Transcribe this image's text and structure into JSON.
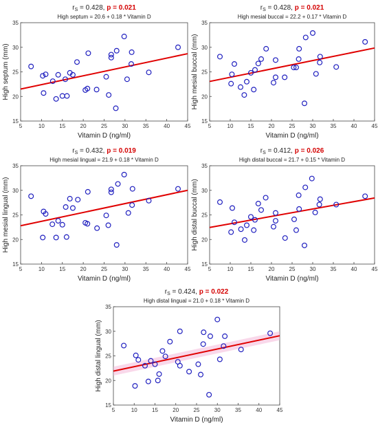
{
  "colors": {
    "points": "#1f1fbf",
    "regression": "#e00000",
    "band": "#f4b8d8",
    "pvalue": "#d40000"
  },
  "chart_data": [
    {
      "type": "scatter",
      "rs_label": "r",
      "rs_sub": "S",
      "rs_text": " = 0.428, ",
      "p_text": "p = 0.021",
      "equation": "High septum = 20.6 + 0.18 * Vitamin D",
      "xlabel": "Vitamin D (ng/ml)",
      "ylabel": "High septum (mm)",
      "xlim": [
        5,
        45
      ],
      "ylim": [
        15,
        35
      ],
      "xticks": [
        "5",
        "10",
        "15",
        "20",
        "25",
        "30",
        "35",
        "40",
        "45"
      ],
      "yticks": [
        "15",
        "20",
        "25",
        "30",
        "35"
      ],
      "intercept": 20.6,
      "slope": 0.18,
      "band": false,
      "points": [
        [
          7.5,
          26.1
        ],
        [
          10.3,
          24.2
        ],
        [
          10.5,
          20.7
        ],
        [
          11,
          24.5
        ],
        [
          12.7,
          23.1
        ],
        [
          13.5,
          19.5
        ],
        [
          14,
          24.4
        ],
        [
          15,
          20.1
        ],
        [
          15.7,
          23.5
        ],
        [
          16.1,
          20.1
        ],
        [
          16.8,
          24.8
        ],
        [
          17.5,
          24.4
        ],
        [
          18.5,
          27.0
        ],
        [
          20.5,
          21.3
        ],
        [
          21,
          21.6
        ],
        [
          21.2,
          28.8
        ],
        [
          23.2,
          21.4
        ],
        [
          25.5,
          24.0
        ],
        [
          26.1,
          20.3
        ],
        [
          26.7,
          27.9
        ],
        [
          26.7,
          28.5
        ],
        [
          27.8,
          17.6
        ],
        [
          28,
          29.3
        ],
        [
          29.8,
          32.2
        ],
        [
          30.5,
          23.5
        ],
        [
          31.5,
          26.6
        ],
        [
          31.6,
          29.0
        ],
        [
          35.7,
          24.9
        ],
        [
          42.7,
          30.0
        ]
      ]
    },
    {
      "type": "scatter",
      "rs_label": "r",
      "rs_sub": "S",
      "rs_text": " = 0.428, ",
      "p_text": "p = 0.021",
      "equation": "High mesial buccal = 22.2 + 0.17 * Vitamin D",
      "xlabel": "Vitamin D (ng/ml)",
      "ylabel": "High mesial buccal (mm)",
      "xlim": [
        5,
        45
      ],
      "ylim": [
        15,
        35
      ],
      "xticks": [
        "5",
        "10",
        "15",
        "20",
        "25",
        "30",
        "35",
        "40",
        "45"
      ],
      "yticks": [
        "15",
        "20",
        "25",
        "30",
        "35"
      ],
      "intercept": 22.2,
      "slope": 0.17,
      "band": false,
      "points": [
        [
          7.5,
          28.1
        ],
        [
          10.2,
          22.6
        ],
        [
          10.4,
          24.5
        ],
        [
          11,
          26.6
        ],
        [
          12.5,
          21.9
        ],
        [
          13.4,
          20.3
        ],
        [
          14,
          23.0
        ],
        [
          15,
          24.8
        ],
        [
          15.7,
          21.4
        ],
        [
          16,
          25.4
        ],
        [
          16.8,
          26.7
        ],
        [
          17.5,
          27.6
        ],
        [
          18.7,
          29.7
        ],
        [
          20.5,
          22.8
        ],
        [
          21,
          23.9
        ],
        [
          21,
          27.4
        ],
        [
          23.2,
          23.9
        ],
        [
          25.4,
          25.9
        ],
        [
          26,
          25.9
        ],
        [
          26.6,
          27.6
        ],
        [
          26.7,
          29.7
        ],
        [
          28,
          18.6
        ],
        [
          28.3,
          32.0
        ],
        [
          30,
          32.9
        ],
        [
          30.8,
          24.6
        ],
        [
          31.7,
          26.9
        ],
        [
          31.8,
          28.1
        ],
        [
          35.7,
          26.0
        ],
        [
          42.7,
          31.1
        ]
      ]
    },
    {
      "type": "scatter",
      "rs_label": "r",
      "rs_sub": "S",
      "rs_text": " = 0.432, ",
      "p_text": "p = 0.019",
      "equation": "High mesial lingual = 21.9 + 0.18 * Vitamin D",
      "xlabel": "Vitamin D (ng/ml)",
      "ylabel": "High mesial lingual (mm)",
      "xlim": [
        5,
        45
      ],
      "ylim": [
        15,
        35
      ],
      "xticks": [
        "5",
        "10",
        "15",
        "20",
        "25",
        "30",
        "35",
        "40",
        "45"
      ],
      "yticks": [
        "15",
        "20",
        "25",
        "30",
        "35"
      ],
      "intercept": 21.9,
      "slope": 0.18,
      "band": false,
      "points": [
        [
          7.5,
          28.8
        ],
        [
          10.3,
          20.4
        ],
        [
          10.5,
          25.7
        ],
        [
          11,
          25.2
        ],
        [
          12.6,
          23.1
        ],
        [
          13.5,
          20.4
        ],
        [
          14,
          23.8
        ],
        [
          15,
          23.0
        ],
        [
          15.8,
          26.6
        ],
        [
          16,
          20.5
        ],
        [
          16.8,
          28.3
        ],
        [
          17.5,
          26.4
        ],
        [
          18.7,
          28.1
        ],
        [
          20.5,
          23.4
        ],
        [
          21,
          23.2
        ],
        [
          21.1,
          29.7
        ],
        [
          23.3,
          22.3
        ],
        [
          25.5,
          24.9
        ],
        [
          26,
          22.9
        ],
        [
          26.7,
          29.6
        ],
        [
          26.7,
          30.2
        ],
        [
          28,
          18.9
        ],
        [
          28.3,
          31.3
        ],
        [
          29.8,
          33.2
        ],
        [
          30.8,
          25.4
        ],
        [
          31.7,
          27.0
        ],
        [
          31.8,
          30.3
        ],
        [
          35.7,
          27.9
        ],
        [
          42.7,
          30.3
        ]
      ]
    },
    {
      "type": "scatter",
      "rs_label": "r",
      "rs_sub": "S",
      "rs_text": " = 0.412, ",
      "p_text": "p = 0.026",
      "equation": "High distal buccal = 21.7 + 0.15 * Vitamin D",
      "xlabel": "Vitamin D (ng/ml)",
      "ylabel": "High distal buccal (mm)",
      "xlim": [
        5,
        45
      ],
      "ylim": [
        15,
        35
      ],
      "xticks": [
        "5",
        "10",
        "15",
        "20",
        "25",
        "30",
        "35",
        "40",
        "45"
      ],
      "yticks": [
        "15",
        "20",
        "25",
        "30",
        "35"
      ],
      "intercept": 21.7,
      "slope": 0.15,
      "band": false,
      "points": [
        [
          7.5,
          27.6
        ],
        [
          10.2,
          21.5
        ],
        [
          10.5,
          26.4
        ],
        [
          11,
          23.5
        ],
        [
          12.6,
          22.1
        ],
        [
          13.5,
          19.9
        ],
        [
          14,
          22.9
        ],
        [
          15,
          24.6
        ],
        [
          15.7,
          21.9
        ],
        [
          16,
          24.0
        ],
        [
          16.8,
          27.3
        ],
        [
          17.5,
          26.0
        ],
        [
          18.6,
          28.5
        ],
        [
          20.5,
          22.6
        ],
        [
          21,
          25.4
        ],
        [
          21,
          23.8
        ],
        [
          23.3,
          20.3
        ],
        [
          25.5,
          24.1
        ],
        [
          26,
          21.9
        ],
        [
          26.6,
          29.0
        ],
        [
          26.7,
          26.2
        ],
        [
          28,
          18.8
        ],
        [
          28.2,
          30.6
        ],
        [
          29.8,
          32.4
        ],
        [
          30.6,
          25.5
        ],
        [
          31.6,
          27.1
        ],
        [
          31.8,
          28.2
        ],
        [
          35.7,
          27.1
        ],
        [
          42.7,
          28.8
        ]
      ]
    },
    {
      "type": "scatter",
      "rs_label": "r",
      "rs_sub": "S",
      "rs_text": " = 0.424, ",
      "p_text": "p = 0.022",
      "equation": "High distal lingual = 21.0 + 0.18 * Vitamin D",
      "xlabel": "Vitamin D (ng/ml)",
      "ylabel": "High distal lingual (mm)",
      "xlim": [
        5,
        45
      ],
      "ylim": [
        15,
        35
      ],
      "xticks": [
        "5",
        "10",
        "15",
        "20",
        "25",
        "30",
        "35",
        "40",
        "45"
      ],
      "yticks": [
        "15",
        "20",
        "25",
        "30",
        "35"
      ],
      "intercept": 21.0,
      "slope": 0.18,
      "band": true,
      "points": [
        [
          7.5,
          27.1
        ],
        [
          10.2,
          18.9
        ],
        [
          10.4,
          25.1
        ],
        [
          11,
          24.2
        ],
        [
          12.6,
          23.0
        ],
        [
          13.4,
          19.8
        ],
        [
          14,
          24.0
        ],
        [
          15,
          23.3
        ],
        [
          15.7,
          20.0
        ],
        [
          16,
          21.3
        ],
        [
          16.8,
          26.0
        ],
        [
          17.5,
          24.9
        ],
        [
          18.6,
          27.9
        ],
        [
          20.5,
          23.8
        ],
        [
          21,
          23.0
        ],
        [
          21,
          30.0
        ],
        [
          23.2,
          21.8
        ],
        [
          25.4,
          23.3
        ],
        [
          26,
          21.2
        ],
        [
          26.6,
          27.4
        ],
        [
          26.7,
          29.8
        ],
        [
          28,
          17.1
        ],
        [
          28.3,
          29.0
        ],
        [
          30,
          32.4
        ],
        [
          30.6,
          24.3
        ],
        [
          31.5,
          27.0
        ],
        [
          31.8,
          29.0
        ],
        [
          35.7,
          26.3
        ],
        [
          42.7,
          29.6
        ]
      ]
    }
  ]
}
